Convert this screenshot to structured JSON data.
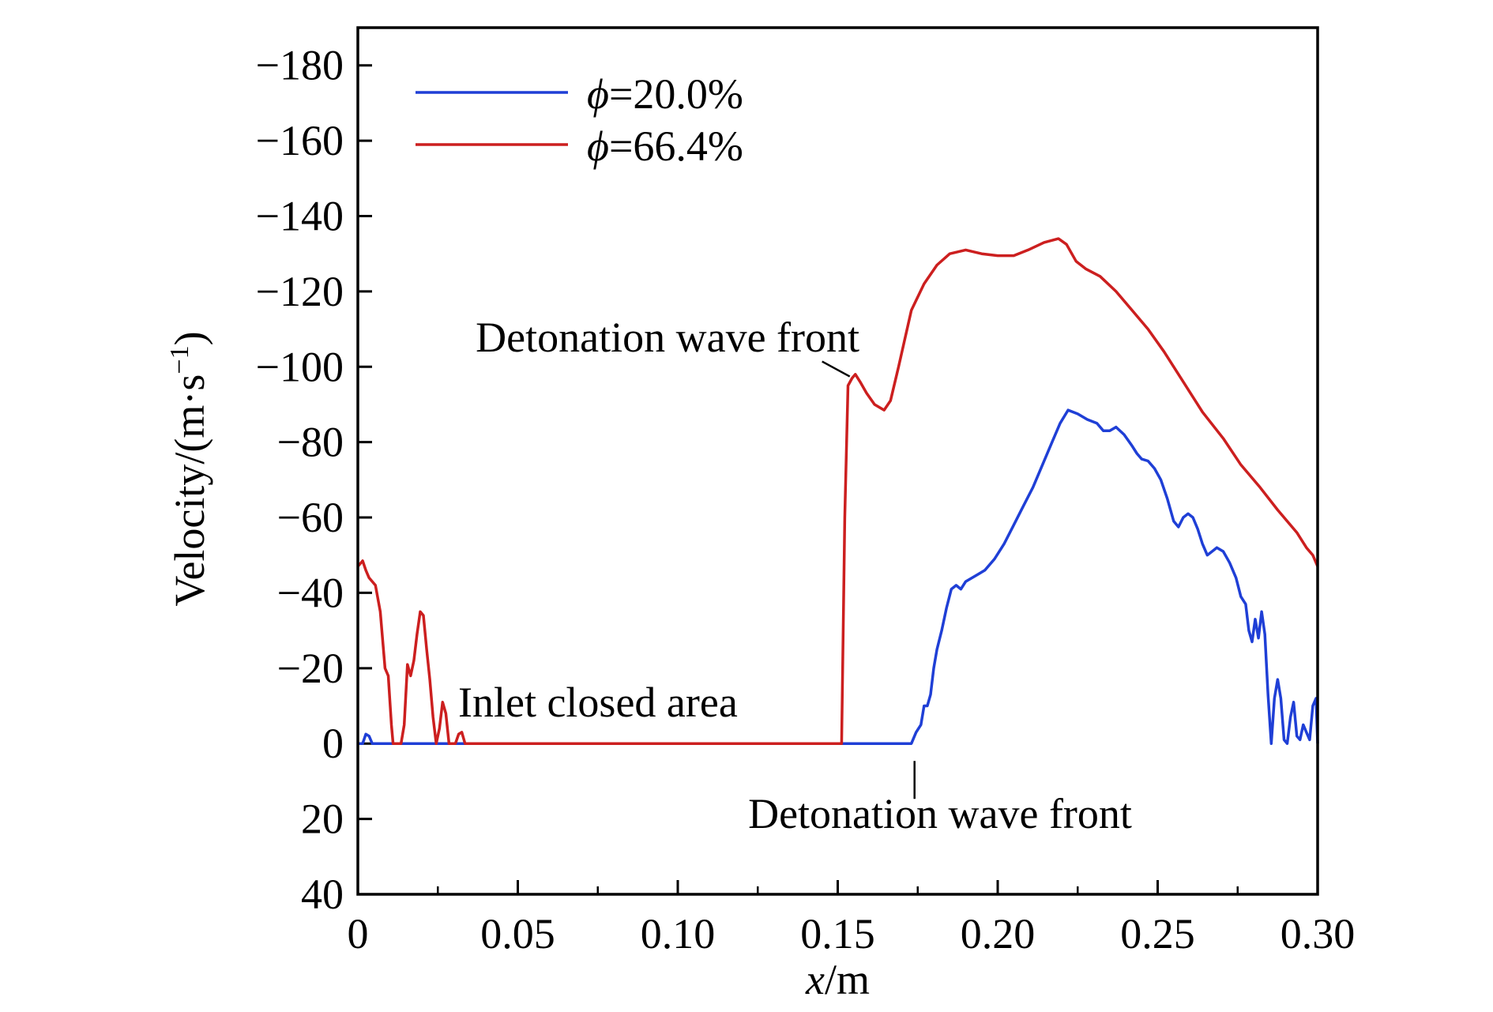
{
  "chart_data": {
    "type": "line",
    "title": "",
    "xlabel": {
      "var": "x",
      "unit": "/m"
    },
    "ylabel": {
      "prefix": "Velocity/(m·s",
      "sup": "−1",
      "suffix": ")"
    },
    "xlim": [
      0,
      0.3
    ],
    "ylim": [
      40,
      -190
    ],
    "y_inverted": true,
    "grid": false,
    "legend_position": "top-left",
    "x_ticks": [
      {
        "value": 0,
        "label": "0"
      },
      {
        "value": 0.05,
        "label": "0.05"
      },
      {
        "value": 0.1,
        "label": "0.10"
      },
      {
        "value": 0.15,
        "label": "0.15"
      },
      {
        "value": 0.2,
        "label": "0.20"
      },
      {
        "value": 0.25,
        "label": "0.25"
      },
      {
        "value": 0.3,
        "label": "0.30"
      }
    ],
    "x_minor_ticks": [
      0.025,
      0.075,
      0.125,
      0.175,
      0.225,
      0.275
    ],
    "y_ticks": [
      {
        "value": -180,
        "label": "−180"
      },
      {
        "value": -160,
        "label": "−160"
      },
      {
        "value": -140,
        "label": "−140"
      },
      {
        "value": -120,
        "label": "−120"
      },
      {
        "value": -100,
        "label": "−100"
      },
      {
        "value": -80,
        "label": "−80"
      },
      {
        "value": -60,
        "label": "−60"
      },
      {
        "value": -40,
        "label": "−40"
      },
      {
        "value": -20,
        "label": "−20"
      },
      {
        "value": 0,
        "label": "0"
      },
      {
        "value": 20,
        "label": "20"
      },
      {
        "value": 40,
        "label": "40"
      }
    ],
    "series": [
      {
        "name": "ϕ=20.0%",
        "name_symbol": "ϕ",
        "name_rest": "=20.0%",
        "color": "#1f3fd6",
        "points": [
          [
            0.0,
            0
          ],
          [
            0.0015,
            0
          ],
          [
            0.0025,
            -2.5
          ],
          [
            0.0035,
            -2
          ],
          [
            0.0045,
            0
          ],
          [
            0.17,
            0
          ],
          [
            0.173,
            0
          ],
          [
            0.1745,
            -3
          ],
          [
            0.176,
            -5
          ],
          [
            0.177,
            -10
          ],
          [
            0.178,
            -10
          ],
          [
            0.179,
            -13
          ],
          [
            0.18,
            -20
          ],
          [
            0.181,
            -25
          ],
          [
            0.1825,
            -30
          ],
          [
            0.184,
            -36
          ],
          [
            0.1855,
            -41
          ],
          [
            0.187,
            -42
          ],
          [
            0.1885,
            -41
          ],
          [
            0.19,
            -43
          ],
          [
            0.192,
            -44
          ],
          [
            0.194,
            -45
          ],
          [
            0.196,
            -46
          ],
          [
            0.199,
            -49
          ],
          [
            0.202,
            -53
          ],
          [
            0.205,
            -58
          ],
          [
            0.208,
            -63
          ],
          [
            0.211,
            -68
          ],
          [
            0.214,
            -74
          ],
          [
            0.217,
            -80
          ],
          [
            0.2195,
            -85
          ],
          [
            0.222,
            -88.5
          ],
          [
            0.225,
            -87.5
          ],
          [
            0.228,
            -86
          ],
          [
            0.231,
            -85
          ],
          [
            0.233,
            -83
          ],
          [
            0.235,
            -83
          ],
          [
            0.237,
            -84
          ],
          [
            0.2395,
            -82
          ],
          [
            0.242,
            -79
          ],
          [
            0.2435,
            -77
          ],
          [
            0.245,
            -75.5
          ],
          [
            0.247,
            -75
          ],
          [
            0.249,
            -73
          ],
          [
            0.251,
            -70
          ],
          [
            0.253,
            -65
          ],
          [
            0.255,
            -59
          ],
          [
            0.2565,
            -57.5
          ],
          [
            0.258,
            -60
          ],
          [
            0.2595,
            -61
          ],
          [
            0.261,
            -60
          ],
          [
            0.2625,
            -57
          ],
          [
            0.264,
            -53
          ],
          [
            0.2655,
            -50
          ],
          [
            0.267,
            -51
          ],
          [
            0.2685,
            -52
          ],
          [
            0.2705,
            -51
          ],
          [
            0.2725,
            -48
          ],
          [
            0.2745,
            -44
          ],
          [
            0.276,
            -39
          ],
          [
            0.2775,
            -37
          ],
          [
            0.2785,
            -30
          ],
          [
            0.2795,
            -27
          ],
          [
            0.2805,
            -33
          ],
          [
            0.2815,
            -28
          ],
          [
            0.2825,
            -35
          ],
          [
            0.2835,
            -29
          ],
          [
            0.2845,
            -13
          ],
          [
            0.2855,
            0
          ],
          [
            0.2865,
            -12
          ],
          [
            0.2875,
            -17
          ],
          [
            0.2885,
            -12
          ],
          [
            0.2895,
            -1
          ],
          [
            0.2905,
            0
          ],
          [
            0.2915,
            -7
          ],
          [
            0.2925,
            -11
          ],
          [
            0.2935,
            -2
          ],
          [
            0.2945,
            -1
          ],
          [
            0.2955,
            -5
          ],
          [
            0.2965,
            -3
          ],
          [
            0.2975,
            -1
          ],
          [
            0.2985,
            -10
          ],
          [
            0.2995,
            -12
          ],
          [
            0.3,
            0
          ]
        ]
      },
      {
        "name": "ϕ=66.4%",
        "name_symbol": "ϕ",
        "name_rest": "=66.4%",
        "color": "#cc1f1f",
        "points": [
          [
            0.0,
            -47
          ],
          [
            0.0015,
            -48.5
          ],
          [
            0.0025,
            -46
          ],
          [
            0.0035,
            -44
          ],
          [
            0.0055,
            -42
          ],
          [
            0.007,
            -35
          ],
          [
            0.0085,
            -20
          ],
          [
            0.0095,
            -18
          ],
          [
            0.0105,
            -5
          ],
          [
            0.011,
            0
          ],
          [
            0.0135,
            0
          ],
          [
            0.0145,
            -5
          ],
          [
            0.0155,
            -21
          ],
          [
            0.0165,
            -18
          ],
          [
            0.0175,
            -22
          ],
          [
            0.0185,
            -29
          ],
          [
            0.0195,
            -35
          ],
          [
            0.0205,
            -34
          ],
          [
            0.0215,
            -25
          ],
          [
            0.0225,
            -17
          ],
          [
            0.0235,
            -7
          ],
          [
            0.0245,
            0
          ],
          [
            0.0255,
            -4
          ],
          [
            0.0265,
            -11
          ],
          [
            0.0275,
            -8
          ],
          [
            0.0285,
            0
          ],
          [
            0.0305,
            0
          ],
          [
            0.0315,
            -2.5
          ],
          [
            0.0325,
            -3
          ],
          [
            0.0335,
            0
          ],
          [
            0.1512,
            0
          ],
          [
            0.1522,
            -60
          ],
          [
            0.1532,
            -95
          ],
          [
            0.1545,
            -97
          ],
          [
            0.1555,
            -98
          ],
          [
            0.157,
            -96
          ],
          [
            0.159,
            -93
          ],
          [
            0.1615,
            -90
          ],
          [
            0.1645,
            -88.5
          ],
          [
            0.1665,
            -91
          ],
          [
            0.169,
            -100
          ],
          [
            0.173,
            -115
          ],
          [
            0.177,
            -122
          ],
          [
            0.181,
            -127
          ],
          [
            0.185,
            -130
          ],
          [
            0.19,
            -131
          ],
          [
            0.195,
            -130
          ],
          [
            0.2,
            -129.5
          ],
          [
            0.205,
            -129.5
          ],
          [
            0.2095,
            -131
          ],
          [
            0.2145,
            -133
          ],
          [
            0.219,
            -134
          ],
          [
            0.2215,
            -132.5
          ],
          [
            0.2245,
            -128
          ],
          [
            0.2275,
            -126
          ],
          [
            0.232,
            -124
          ],
          [
            0.237,
            -120
          ],
          [
            0.242,
            -115
          ],
          [
            0.247,
            -110
          ],
          [
            0.252,
            -104
          ],
          [
            0.258,
            -96
          ],
          [
            0.264,
            -88
          ],
          [
            0.2705,
            -81
          ],
          [
            0.276,
            -74
          ],
          [
            0.282,
            -68
          ],
          [
            0.2875,
            -62
          ],
          [
            0.2935,
            -56
          ],
          [
            0.2965,
            -52
          ],
          [
            0.2985,
            -50
          ],
          [
            0.3,
            -47
          ]
        ]
      }
    ],
    "annotations": [
      {
        "id": "annot-detonation-red",
        "text": "Detonation wave front",
        "target": [
          0.1545,
          -97
        ],
        "placement": "above-left"
      },
      {
        "id": "annot-detonation-blue",
        "text": "Detonation wave front",
        "target": [
          0.174,
          0
        ],
        "placement": "below"
      },
      {
        "id": "annot-inlet",
        "text": "Inlet closed area",
        "target": [
          0.032,
          -5
        ],
        "placement": "above-right"
      }
    ]
  }
}
